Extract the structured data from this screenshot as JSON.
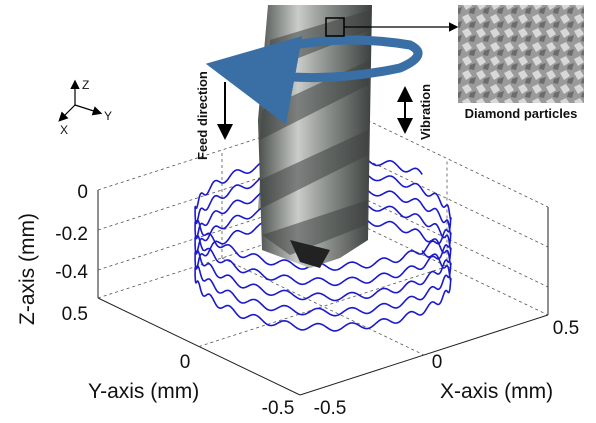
{
  "axes": {
    "z_label": "Z-axis (mm)",
    "y_label": "Y-axis (mm)",
    "x_label": "X-axis (mm)",
    "z_ticks": [
      "0",
      "-0.2",
      "-0.4"
    ],
    "y_ticks": [
      "0.5",
      "0",
      "-0.5"
    ],
    "x_ticks": [
      "-0.5",
      "0",
      "0.5"
    ]
  },
  "annotations": {
    "feed": "Feed direction",
    "vibration": "Vibration",
    "inset": "Diamond particles",
    "triad": {
      "z": "Z",
      "y": "Y",
      "x": "X"
    }
  }
}
